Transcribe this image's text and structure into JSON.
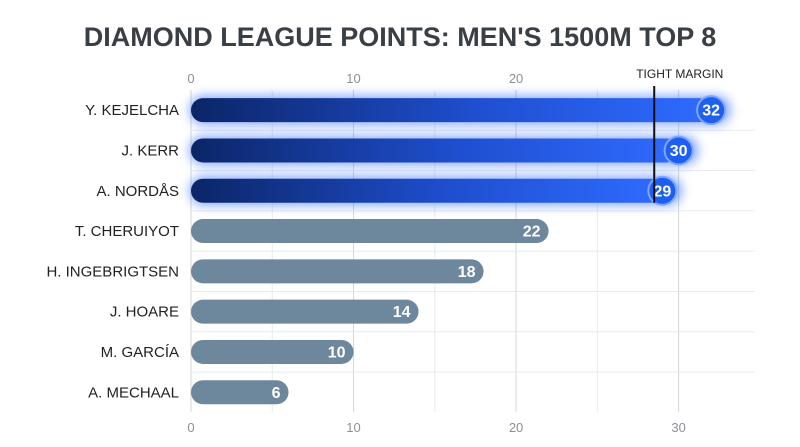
{
  "chart_data": {
    "type": "bar",
    "orientation": "horizontal",
    "title": "DIAMOND LEAGUE POINTS: MEN'S 1500M TOP 8",
    "categories": [
      "Y. KEJELCHA",
      "J. KERR",
      "A. NORDÅS",
      "T. CHERUIYOT",
      "H. INGEBRIGTSEN",
      "J. HOARE",
      "M. GARCÍA",
      "A. MECHAAL"
    ],
    "values": [
      32,
      30,
      29,
      22,
      18,
      14,
      10,
      6
    ],
    "highlighted": [
      true,
      true,
      true,
      false,
      false,
      false,
      false,
      false
    ],
    "xlim": [
      0,
      34.7
    ],
    "x_ticks": [
      0,
      10,
      20,
      30
    ],
    "x_tick_labels_top": [
      "0",
      "10",
      "20"
    ],
    "x_tick_labels_bottom": [
      "0",
      "10",
      "20",
      "30"
    ],
    "minor_gridlines": [
      5,
      15,
      25
    ],
    "grid": true,
    "annotation": {
      "label": "TIGHT MARGIN",
      "x": 28.5
    },
    "colors": {
      "title": "#3a3f45",
      "highlight_dark": "#0b2566",
      "highlight_mid": "#1f4fd0",
      "highlight_bright": "#2f6bff",
      "badge": "#1f5ff0",
      "muted_bar": "#6d879d",
      "grid_major": "#d2d6da",
      "grid_minor": "#e8eaed",
      "axis_text": "#8a9096",
      "label_text": "#222222"
    }
  }
}
